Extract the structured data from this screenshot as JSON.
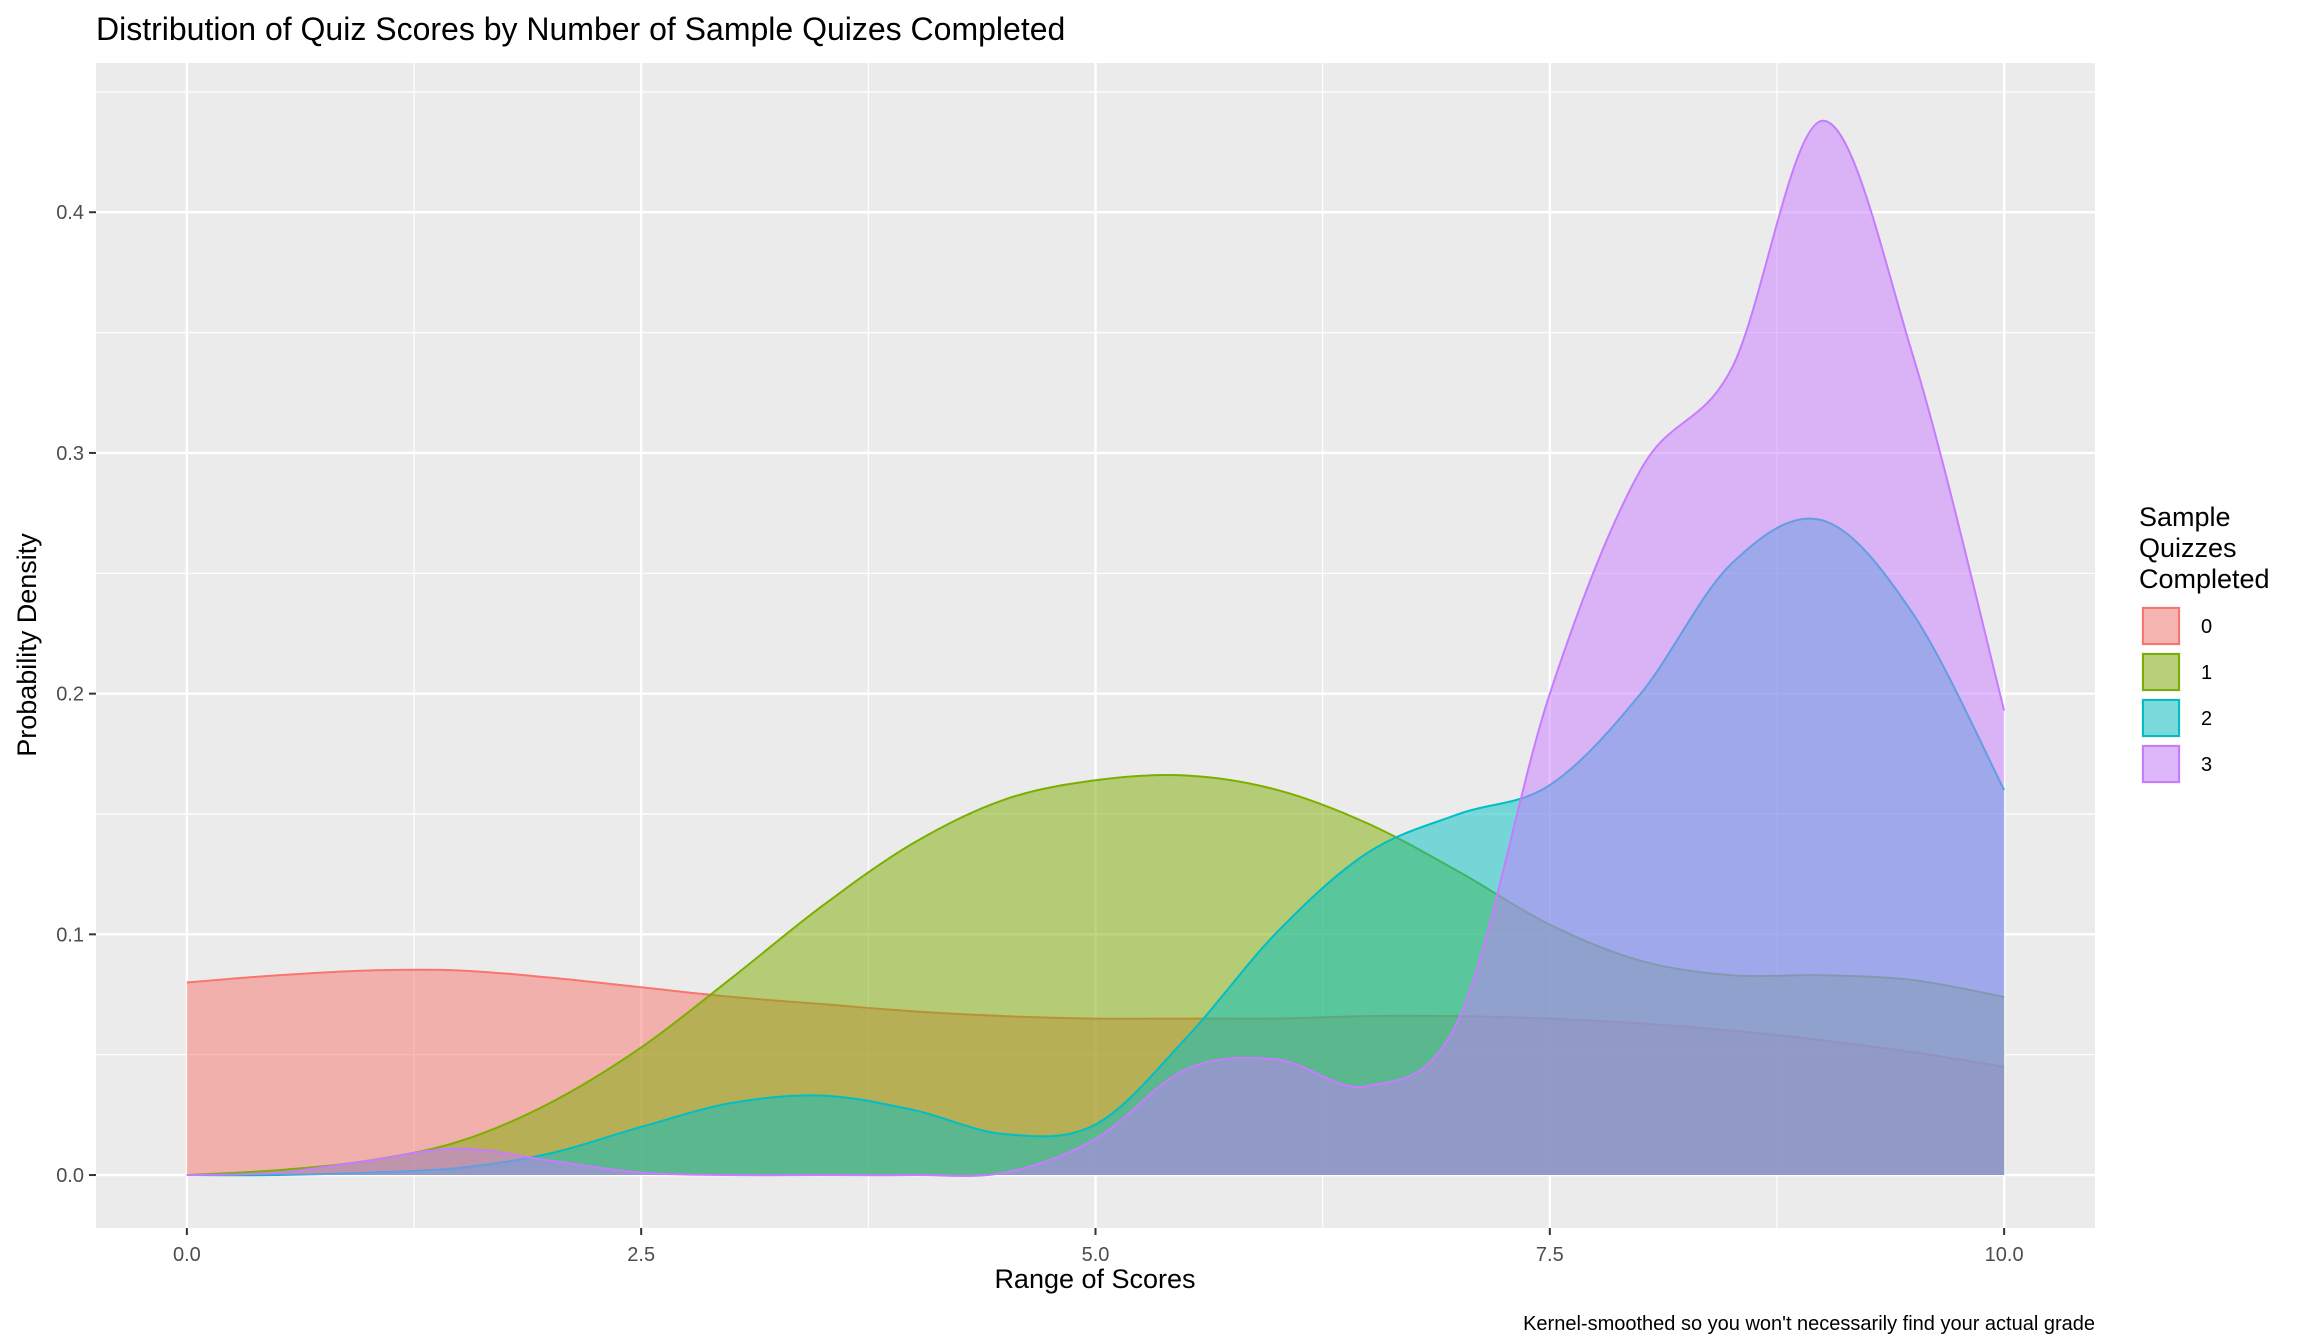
{
  "chart_data": {
    "type": "area",
    "title": "Distribution of Quiz Scores by Number of Sample Quizes Completed",
    "xlabel": "Range of Scores",
    "ylabel": "Probability Density",
    "caption": "Kernel-smoothed so you won't necessarily find your actual grade",
    "xlim": [
      -0.5,
      10.5
    ],
    "ylim": [
      -0.022,
      0.462
    ],
    "x_ticks": [
      0,
      2.5,
      5,
      7.5,
      10
    ],
    "x_tick_labels": [
      "0.0",
      "2.5",
      "5.0",
      "7.5",
      "10.0"
    ],
    "y_ticks": [
      0,
      0.1,
      0.2,
      0.3,
      0.4
    ],
    "y_tick_labels": [
      "0.0",
      "0.1",
      "0.2",
      "0.3",
      "0.4"
    ],
    "grid": true,
    "legend": {
      "title": "Sample\nQuizzes\nCompleted",
      "position": "right"
    },
    "series": [
      {
        "name": "0",
        "color": "#F8766D",
        "x": [
          0,
          0.5,
          1,
          1.5,
          2,
          2.5,
          3,
          3.5,
          4,
          4.5,
          5,
          5.5,
          6,
          6.5,
          7,
          7.5,
          8,
          8.5,
          9,
          9.5,
          10
        ],
        "y": [
          0.08,
          0.083,
          0.085,
          0.085,
          0.082,
          0.078,
          0.074,
          0.071,
          0.068,
          0.066,
          0.065,
          0.065,
          0.065,
          0.066,
          0.066,
          0.065,
          0.063,
          0.06,
          0.056,
          0.051,
          0.045
        ]
      },
      {
        "name": "1",
        "color": "#7CAE00",
        "x": [
          0,
          0.5,
          1,
          1.5,
          2,
          2.5,
          3,
          3.5,
          4,
          4.5,
          5,
          5.5,
          6,
          6.5,
          7,
          7.5,
          8,
          8.5,
          9,
          9.5,
          10
        ],
        "y": [
          0.0,
          0.002,
          0.006,
          0.014,
          0.03,
          0.053,
          0.082,
          0.112,
          0.138,
          0.156,
          0.164,
          0.166,
          0.16,
          0.146,
          0.126,
          0.104,
          0.089,
          0.083,
          0.083,
          0.081,
          0.074
        ]
      },
      {
        "name": "2",
        "color": "#00BFC4",
        "x": [
          0,
          0.5,
          1,
          1.5,
          2,
          2.5,
          3,
          3.5,
          4,
          4.5,
          5,
          5.5,
          6,
          6.5,
          7,
          7.5,
          8,
          8.5,
          9,
          9.5,
          10
        ],
        "y": [
          0.0,
          0.0,
          0.001,
          0.003,
          0.009,
          0.02,
          0.03,
          0.033,
          0.027,
          0.017,
          0.021,
          0.057,
          0.101,
          0.134,
          0.15,
          0.162,
          0.2,
          0.254,
          0.272,
          0.233,
          0.16
        ]
      },
      {
        "name": "3",
        "color": "#C77CFF",
        "x": [
          0,
          0.5,
          1,
          1.5,
          2,
          2.5,
          3,
          3.5,
          4,
          4.5,
          5,
          5.5,
          6,
          6.5,
          7,
          7.5,
          8,
          8.5,
          9,
          9.5,
          10
        ],
        "y": [
          0.0,
          0.001,
          0.006,
          0.011,
          0.006,
          0.001,
          0.0,
          0.0,
          0.0,
          0.001,
          0.015,
          0.044,
          0.048,
          0.037,
          0.065,
          0.2,
          0.293,
          0.335,
          0.438,
          0.34,
          0.193
        ]
      }
    ]
  }
}
